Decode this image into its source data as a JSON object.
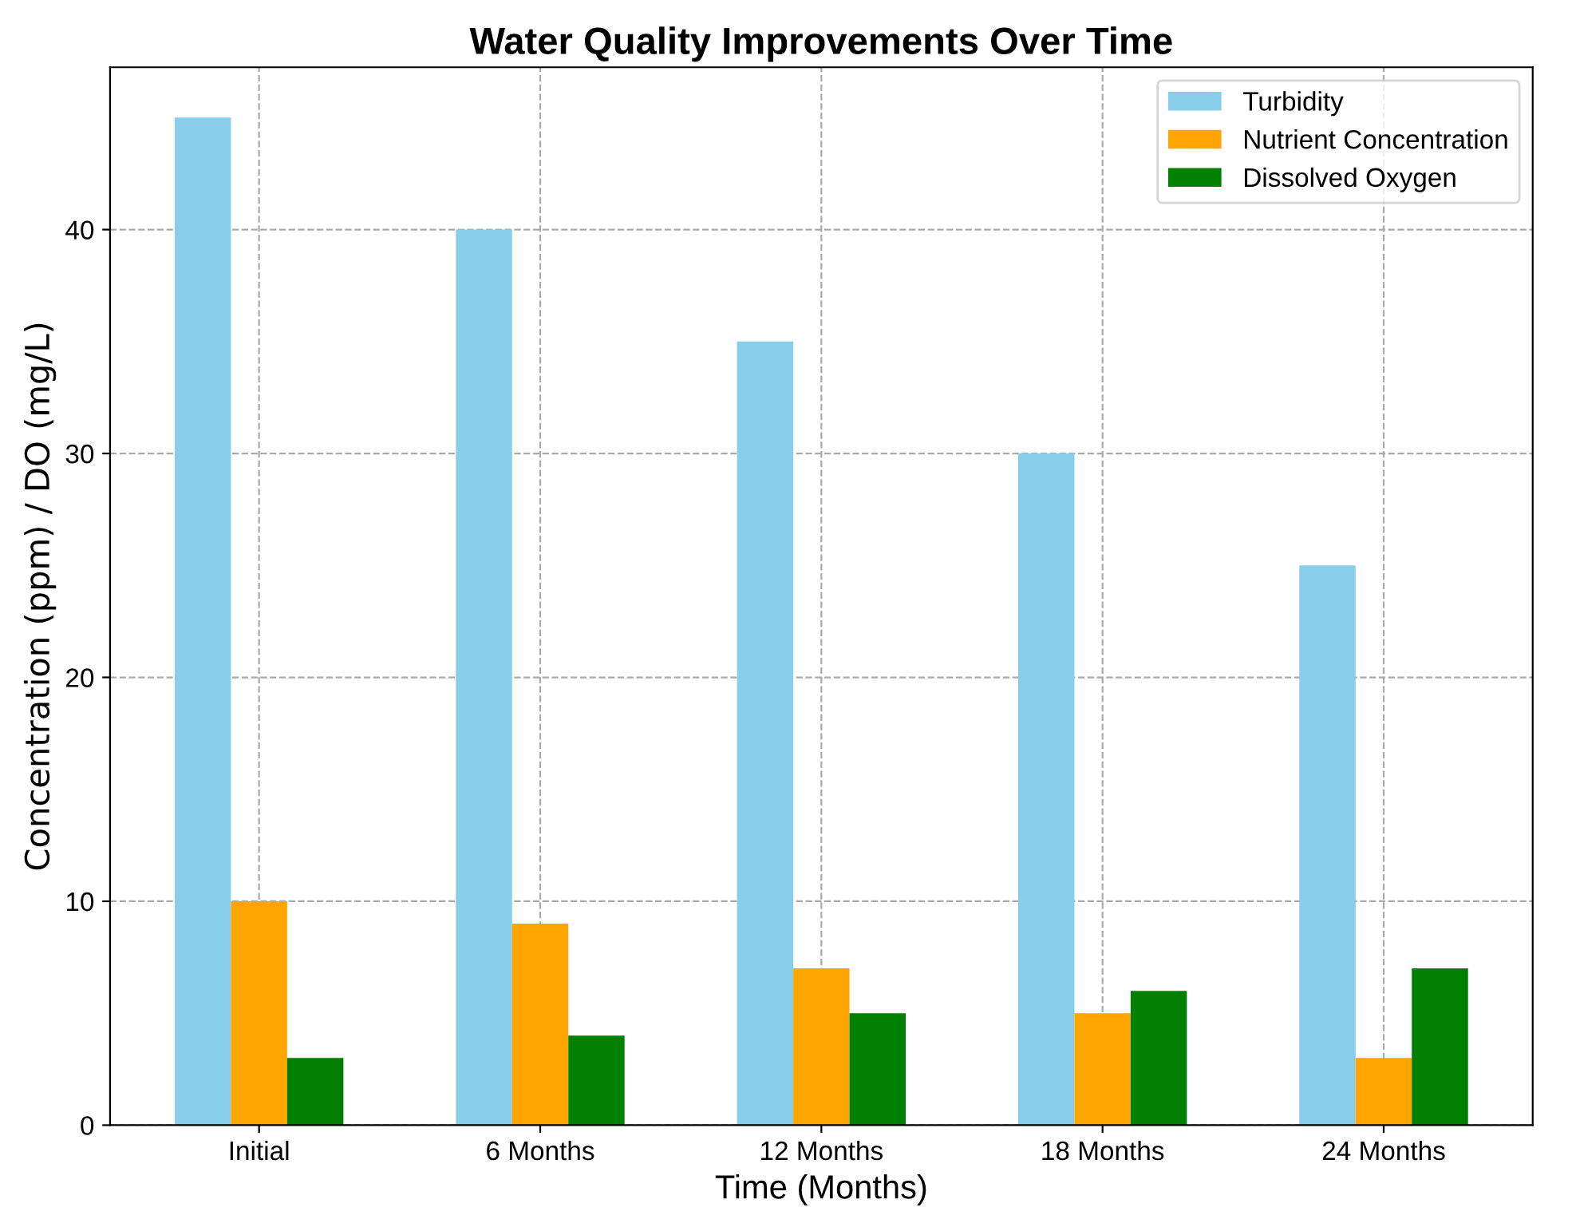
{
  "chart_data": {
    "type": "bar",
    "title": "Water Quality Improvements Over Time",
    "xlabel": "Time (Months)",
    "ylabel": "Concentration (ppm) / DO (mg/L)",
    "categories": [
      "Initial",
      "6 Months",
      "12 Months",
      "18 Months",
      "24 Months"
    ],
    "series": [
      {
        "name": "Turbidity",
        "color": "#87ceeb",
        "values": [
          45,
          40,
          35,
          30,
          25
        ]
      },
      {
        "name": "Nutrient Concentration",
        "color": "#ffa500",
        "values": [
          10,
          9,
          7,
          5,
          3
        ]
      },
      {
        "name": "Dissolved Oxygen",
        "color": "#008000",
        "values": [
          3,
          4,
          5,
          6,
          7
        ]
      }
    ],
    "ylim": [
      0,
      47.25
    ],
    "yticks": [
      0,
      10,
      20,
      30,
      40
    ],
    "grid": true,
    "legend": "top right"
  }
}
